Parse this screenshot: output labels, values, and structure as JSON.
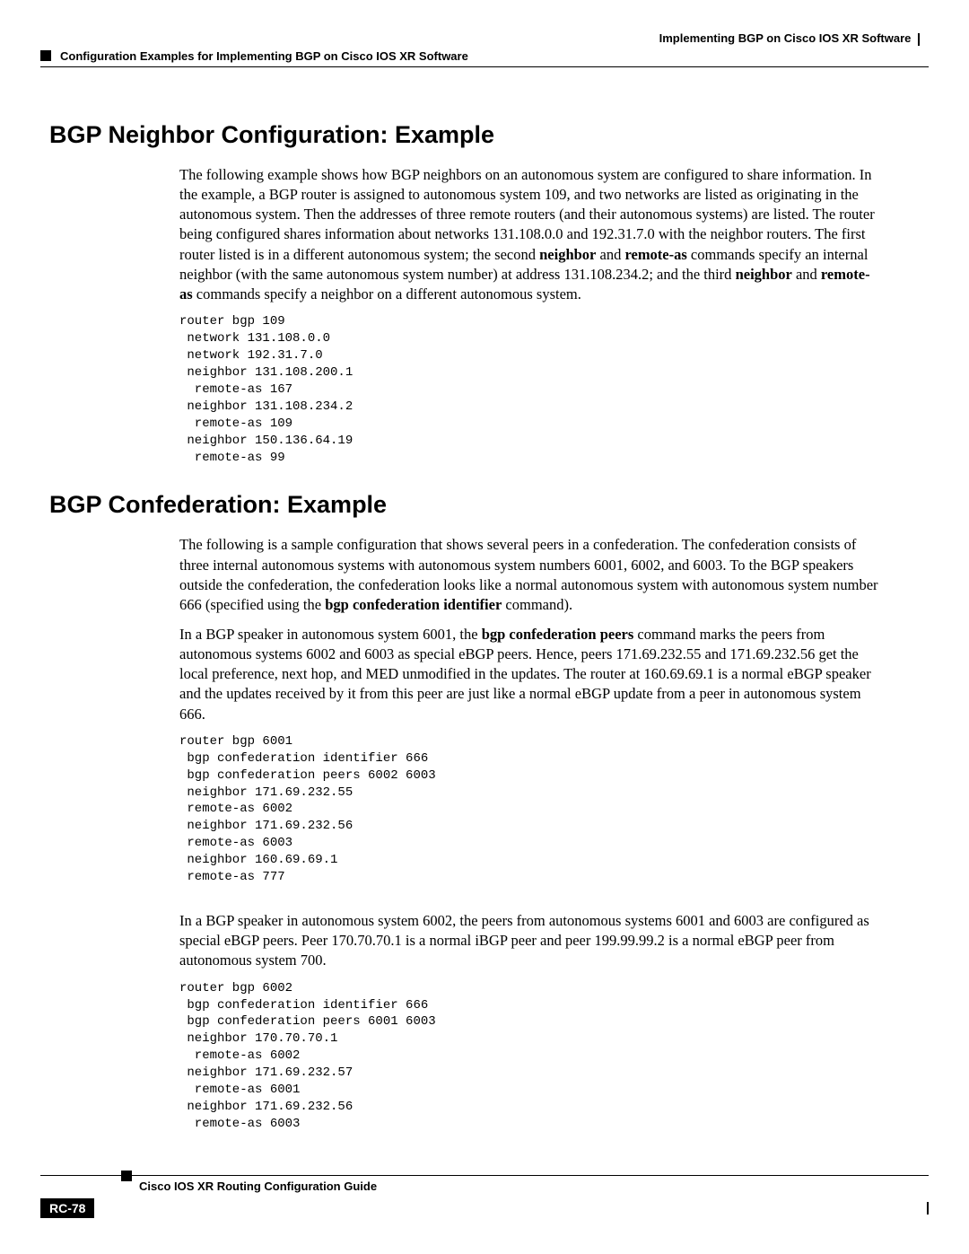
{
  "header": {
    "right": "Implementing BGP on Cisco IOS XR Software",
    "left": "Configuration Examples for Implementing BGP on Cisco IOS XR Software"
  },
  "section1": {
    "title": "BGP Neighbor Configuration: Example",
    "para1_a": "The following example shows how BGP neighbors on an autonomous system are configured to share information. In the example, a BGP router is assigned to autonomous system 109, and two networks are listed as originating in the autonomous system. Then the addresses of three remote routers (and their autonomous systems) are listed. The router being configured shares information about networks 131.108.0.0 and 192.31.7.0 with the neighbor routers. The first router listed is in a different autonomous system; the second ",
    "para1_b1": "neighbor",
    "para1_c": " and ",
    "para1_b2": "remote-as",
    "para1_d": " commands specify an internal neighbor (with the same autonomous system number) at address 131.108.234.2; and the third ",
    "para1_b3": "neighbor",
    "para1_e": " and ",
    "para1_b4": "remote-as",
    "para1_f": " commands specify a neighbor on a different autonomous system.",
    "code": "router bgp 109\n network 131.108.0.0\n network 192.31.7.0\n neighbor 131.108.200.1\n  remote-as 167\n neighbor 131.108.234.2\n  remote-as 109\n neighbor 150.136.64.19\n  remote-as 99"
  },
  "section2": {
    "title": "BGP Confederation: Example",
    "para1_a": "The following is a sample configuration that shows several peers in a confederation. The confederation consists of three internal autonomous systems with autonomous system numbers 6001, 6002, and 6003. To the BGP speakers outside the confederation, the confederation looks like a normal autonomous system with autonomous system number 666 (specified using the ",
    "para1_b1": "bgp confederation identifier",
    "para1_b": " command).",
    "para2_a": "In a BGP speaker in autonomous system 6001, the ",
    "para2_b1": "bgp confederation peers",
    "para2_b": " command marks the peers from autonomous systems 6002 and 6003 as special eBGP peers. Hence, peers 171.69.232.55 and 171.69.232.56 get the local preference, next hop, and MED unmodified in the updates. The router at 160.69.69.1 is a normal eBGP speaker and the updates received by it from this peer are just like a normal eBGP update from a peer in autonomous system 666.",
    "code1": "router bgp 6001\n bgp confederation identifier 666\n bgp confederation peers 6002 6003\n neighbor 171.69.232.55\n remote-as 6002\n neighbor 171.69.232.56\n remote-as 6003\n neighbor 160.69.69.1\n remote-as 777",
    "para3": "In a BGP speaker in autonomous system 6002, the peers from autonomous systems 6001 and 6003 are configured as special eBGP peers. Peer 170.70.70.1 is a normal iBGP peer and peer 199.99.99.2 is a normal eBGP peer from autonomous system 700.",
    "code2": "router bgp 6002\n bgp confederation identifier 666\n bgp confederation peers 6001 6003\n neighbor 170.70.70.1\n  remote-as 6002\n neighbor 171.69.232.57\n  remote-as 6001\n neighbor 171.69.232.56\n  remote-as 6003"
  },
  "footer": {
    "title": "Cisco IOS XR Routing Configuration Guide",
    "page": "RC-78"
  }
}
